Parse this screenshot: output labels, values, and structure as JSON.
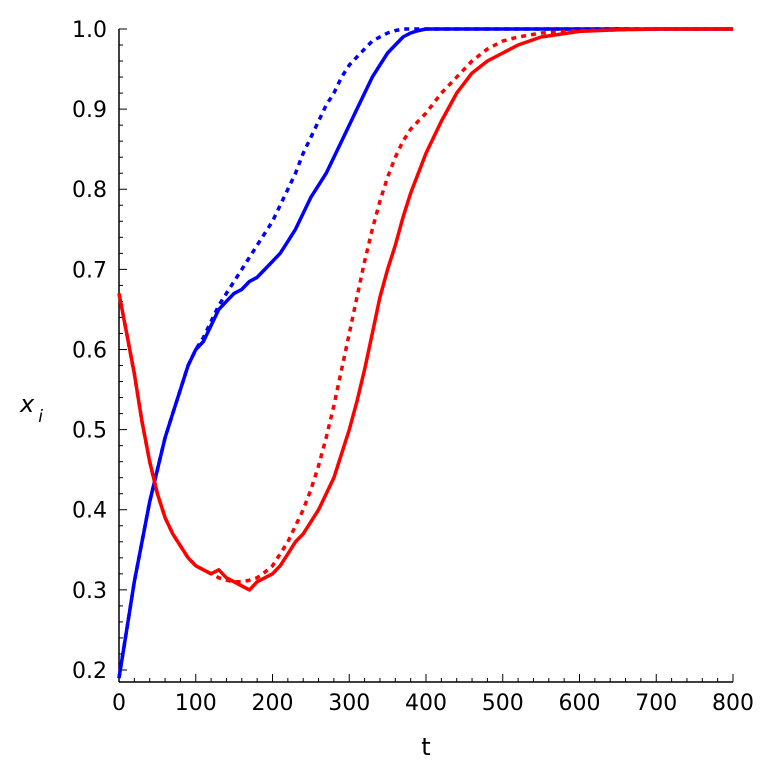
{
  "chart_data": {
    "type": "line",
    "title": "",
    "xlabel": "t",
    "ylabel": "x",
    "ylabel_subscript": "i",
    "xlim": [
      0,
      800
    ],
    "ylim": [
      0.185,
      1.0
    ],
    "xticks": [
      0,
      100,
      200,
      300,
      400,
      500,
      600,
      700,
      800
    ],
    "xtick_labels": [
      "0",
      "100",
      "200",
      "300",
      "400",
      "500",
      "600",
      "700",
      "800"
    ],
    "yticks": [
      0.2,
      0.3,
      0.4,
      0.5,
      0.6,
      0.7,
      0.8,
      0.9,
      1.0
    ],
    "ytick_labels": [
      "0.2",
      "0.3",
      "0.4",
      "0.5",
      "0.6",
      "0.7",
      "0.8",
      "0.9",
      "1.0"
    ],
    "grid": false,
    "legend": "none",
    "series": [
      {
        "color": "#0000ff",
        "style": "solid",
        "x": [
          0,
          10,
          20,
          30,
          40,
          50,
          60,
          70,
          80,
          90,
          100,
          110,
          120,
          130,
          140,
          150,
          160,
          170,
          180,
          190,
          200,
          210,
          220,
          230,
          240,
          250,
          260,
          270,
          280,
          290,
          300,
          310,
          320,
          330,
          340,
          350,
          360,
          370,
          380,
          390,
          400,
          420,
          450,
          500,
          550,
          600,
          700,
          800
        ],
        "y": [
          0.19,
          0.25,
          0.31,
          0.36,
          0.41,
          0.45,
          0.49,
          0.52,
          0.55,
          0.58,
          0.6,
          0.61,
          0.63,
          0.65,
          0.66,
          0.67,
          0.675,
          0.685,
          0.69,
          0.7,
          0.71,
          0.72,
          0.735,
          0.75,
          0.77,
          0.79,
          0.805,
          0.82,
          0.84,
          0.86,
          0.88,
          0.9,
          0.92,
          0.94,
          0.955,
          0.97,
          0.98,
          0.99,
          0.995,
          0.998,
          1.0,
          1.0,
          1.0,
          1.0,
          1.0,
          1.0,
          1.0,
          1.0
        ]
      },
      {
        "color": "#0000ff",
        "style": "dotted",
        "x": [
          0,
          10,
          20,
          30,
          40,
          50,
          60,
          70,
          80,
          90,
          100,
          110,
          120,
          130,
          140,
          150,
          160,
          170,
          180,
          190,
          200,
          210,
          220,
          230,
          240,
          250,
          260,
          270,
          280,
          290,
          300,
          310,
          320,
          330,
          340,
          350,
          360,
          370,
          380,
          390,
          400,
          420,
          450,
          500,
          550,
          600,
          700,
          800
        ],
        "y": [
          0.19,
          0.25,
          0.31,
          0.36,
          0.41,
          0.45,
          0.49,
          0.52,
          0.55,
          0.58,
          0.6,
          0.615,
          0.635,
          0.655,
          0.67,
          0.685,
          0.7,
          0.715,
          0.73,
          0.745,
          0.76,
          0.78,
          0.8,
          0.82,
          0.845,
          0.865,
          0.885,
          0.905,
          0.92,
          0.94,
          0.955,
          0.965,
          0.975,
          0.985,
          0.99,
          0.995,
          0.998,
          1.0,
          1.0,
          1.0,
          1.0,
          1.0,
          1.0,
          1.0,
          1.0,
          1.0,
          1.0,
          1.0
        ]
      },
      {
        "color": "#ff0000",
        "style": "solid",
        "x": [
          0,
          10,
          20,
          30,
          40,
          50,
          60,
          70,
          80,
          90,
          100,
          110,
          120,
          130,
          140,
          150,
          160,
          170,
          180,
          190,
          200,
          210,
          220,
          230,
          240,
          250,
          260,
          270,
          280,
          290,
          300,
          310,
          320,
          330,
          340,
          350,
          360,
          370,
          380,
          390,
          400,
          420,
          440,
          460,
          480,
          500,
          520,
          550,
          600,
          650,
          700,
          800
        ],
        "y": [
          0.67,
          0.62,
          0.57,
          0.51,
          0.46,
          0.42,
          0.39,
          0.37,
          0.355,
          0.34,
          0.33,
          0.325,
          0.32,
          0.325,
          0.315,
          0.31,
          0.305,
          0.3,
          0.31,
          0.315,
          0.32,
          0.33,
          0.345,
          0.36,
          0.37,
          0.385,
          0.4,
          0.42,
          0.44,
          0.47,
          0.5,
          0.535,
          0.575,
          0.62,
          0.665,
          0.7,
          0.73,
          0.765,
          0.795,
          0.82,
          0.845,
          0.885,
          0.92,
          0.945,
          0.96,
          0.97,
          0.98,
          0.99,
          0.997,
          0.999,
          1.0,
          1.0
        ]
      },
      {
        "color": "#ff0000",
        "style": "dotted",
        "x": [
          0,
          10,
          20,
          30,
          40,
          50,
          60,
          70,
          80,
          90,
          100,
          110,
          120,
          130,
          140,
          150,
          160,
          170,
          180,
          190,
          200,
          210,
          220,
          230,
          240,
          250,
          260,
          270,
          280,
          290,
          300,
          310,
          320,
          330,
          340,
          350,
          360,
          370,
          380,
          390,
          400,
          420,
          440,
          460,
          480,
          500,
          520,
          550,
          600,
          650,
          700,
          800
        ],
        "y": [
          0.67,
          0.62,
          0.57,
          0.51,
          0.46,
          0.42,
          0.39,
          0.37,
          0.355,
          0.34,
          0.33,
          0.325,
          0.32,
          0.315,
          0.312,
          0.31,
          0.31,
          0.312,
          0.315,
          0.322,
          0.33,
          0.345,
          0.36,
          0.38,
          0.4,
          0.425,
          0.455,
          0.49,
          0.53,
          0.575,
          0.62,
          0.665,
          0.71,
          0.75,
          0.785,
          0.815,
          0.84,
          0.86,
          0.875,
          0.885,
          0.895,
          0.92,
          0.94,
          0.96,
          0.975,
          0.985,
          0.99,
          0.995,
          0.998,
          0.999,
          1.0,
          1.0
        ]
      }
    ]
  }
}
